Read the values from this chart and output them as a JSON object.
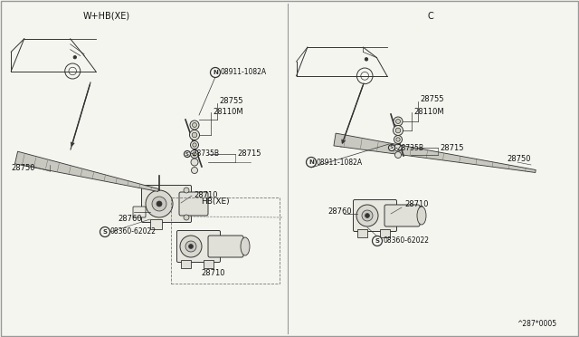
{
  "bg_color": "#f5f5f0",
  "border_color": "#999999",
  "line_color": "#333333",
  "text_color": "#111111",
  "left_label": "W+HB(XE)",
  "right_label": "C",
  "bottom_ref": "^287*0005",
  "fig_w": 6.4,
  "fig_h": 3.72,
  "dpi": 100
}
